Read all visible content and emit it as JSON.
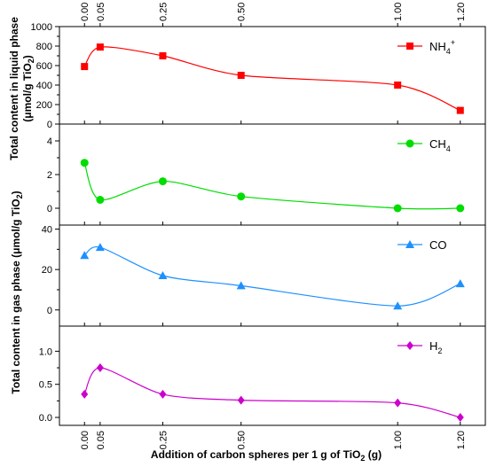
{
  "chart_data": {
    "type": "line",
    "xlabel": "Addition of carbon spheres per 1 g of TiO",
    "xlabel_sub": "2",
    "xlabel_tail": " (g)",
    "x": [
      0.0,
      0.05,
      0.25,
      0.5,
      1.0,
      1.2
    ],
    "x_tick_labels": [
      "0.00",
      "0.05",
      "0.25",
      "0.50",
      "1.00",
      "1.20"
    ],
    "xlim": [
      -0.08,
      1.28
    ],
    "ylabel_liquid": {
      "line1": "Total content in liquid phase",
      "line2_pre": "(μmol/g TiO",
      "line2_sub": "2",
      "line2_post": ")"
    },
    "ylabel_gas": {
      "line1_pre": "Total content in gas phase (μmol/g TiO",
      "line1_sub": "2",
      "line1_post": ")"
    },
    "panels": [
      {
        "name": "NH4+",
        "legend": {
          "base": "NH",
          "sub": "4",
          "sup": "+"
        },
        "color": "#ff0000",
        "marker": "square",
        "values": [
          590,
          790,
          700,
          500,
          400,
          140
        ],
        "ylim": [
          0,
          1000
        ],
        "yticks": [
          0,
          200,
          400,
          600,
          800,
          1000
        ],
        "ytick_labels": [
          "0",
          "200",
          "400",
          "600",
          "800",
          "1000"
        ]
      },
      {
        "name": "CH4",
        "legend": {
          "base": "CH",
          "sub": "4",
          "sup": ""
        },
        "color": "#00dd00",
        "marker": "circle",
        "values": [
          2.7,
          0.5,
          1.6,
          0.7,
          0.0,
          0.0
        ],
        "ylim": [
          -1,
          5
        ],
        "yticks": [
          0,
          2,
          4
        ],
        "ytick_labels": [
          "0",
          "2",
          "4"
        ]
      },
      {
        "name": "CO",
        "legend": {
          "base": "CO",
          "sub": "",
          "sup": ""
        },
        "color": "#1e90ff",
        "marker": "triangle",
        "values": [
          27,
          31,
          17,
          12,
          2,
          13
        ],
        "ylim": [
          -8,
          42
        ],
        "yticks": [
          0,
          20,
          40
        ],
        "ytick_labels": [
          "0",
          "20",
          "40"
        ]
      },
      {
        "name": "H2",
        "legend": {
          "base": "H",
          "sub": "2",
          "sup": ""
        },
        "color": "#cc00cc",
        "marker": "diamond",
        "values": [
          0.35,
          0.75,
          0.35,
          0.26,
          0.22,
          0.0
        ],
        "ylim": [
          -0.12,
          1.38
        ],
        "yticks": [
          0.0,
          0.5,
          1.0
        ],
        "ytick_labels": [
          "0.0",
          "0.5",
          "1.0"
        ]
      }
    ]
  }
}
